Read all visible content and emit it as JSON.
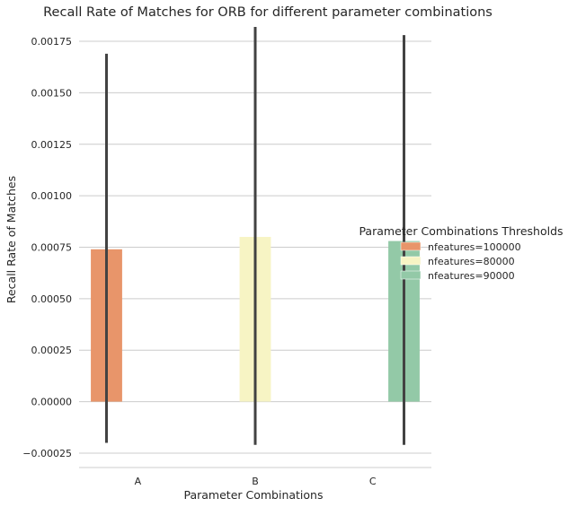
{
  "chart_data": {
    "type": "bar",
    "title": "Recall Rate of Matches for ORB for different parameter combinations",
    "xlabel": "Parameter Combinations",
    "ylabel": "Recall Rate of Matches",
    "categories": [
      "A",
      "B",
      "C"
    ],
    "ylim": [
      -0.00032,
      0.00182
    ],
    "yticks": [
      "−0.00025",
      "0.00000",
      "0.00025",
      "0.00050",
      "0.00075",
      "0.00100",
      "0.00125",
      "0.00150",
      "0.00175"
    ],
    "ytick_values": [
      -0.00025,
      0,
      0.00025,
      0.0005,
      0.00075,
      0.001,
      0.00125,
      0.0015,
      0.00175
    ],
    "grid": "horizontal",
    "legend": {
      "title": "Parameter Combinations Thresholds",
      "placement": "right"
    },
    "series": [
      {
        "name": "nfeatures=100000",
        "color": "#e8956a",
        "values": [
          0.00074,
          null,
          null
        ],
        "error_low": [
          -0.0002,
          null,
          null
        ],
        "error_high": [
          0.00169,
          null,
          null
        ]
      },
      {
        "name": "nfeatures=80000",
        "color": "#f7f4c4",
        "values": [
          null,
          0.0008,
          null
        ],
        "error_low": [
          null,
          -0.00021,
          null
        ],
        "error_high": [
          null,
          0.00182,
          null
        ]
      },
      {
        "name": "nfeatures=90000",
        "color": "#93c9a7",
        "values": [
          null,
          null,
          0.00078
        ],
        "error_low": [
          null,
          null,
          -0.00021
        ],
        "error_high": [
          null,
          null,
          0.00178
        ]
      }
    ]
  }
}
